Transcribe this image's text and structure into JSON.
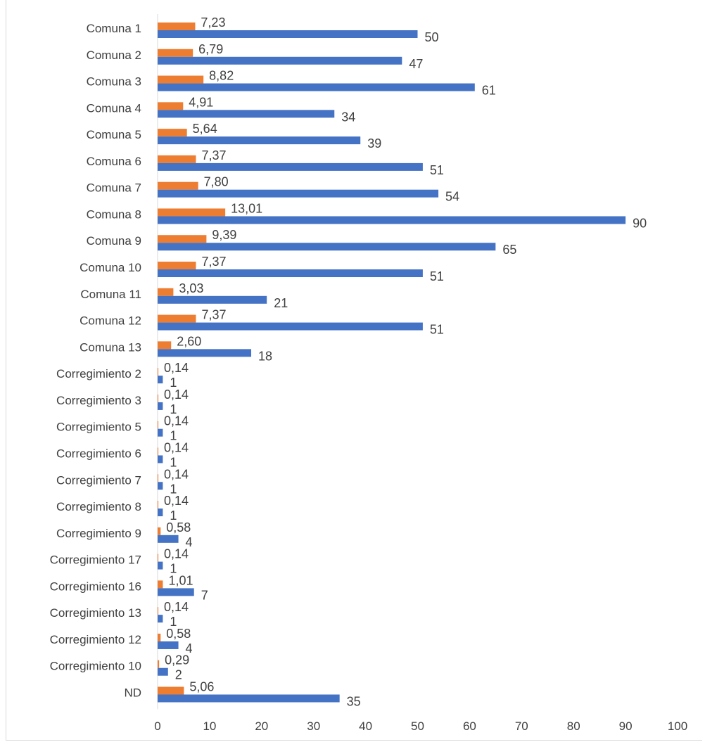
{
  "chart_data": {
    "type": "bar",
    "orientation": "horizontal",
    "categories": [
      "Comuna 1",
      "Comuna 2",
      "Comuna 3",
      "Comuna 4",
      "Comuna 5",
      "Comuna 6",
      "Comuna 7",
      "Comuna 8",
      "Comuna 9",
      "Comuna 10",
      "Comuna 11",
      "Comuna 12",
      "Comuna 13",
      "Corregimiento 2",
      "Corregimiento 3",
      "Corregimiento 5",
      "Corregimiento 6",
      "Corregimiento 7",
      "Corregimiento 8",
      "Corregimiento 9",
      "Corregimiento 17",
      "Corregimiento 16",
      "Corregimiento 13",
      "Corregimiento 12",
      "Corregimiento 10",
      "ND"
    ],
    "series": [
      {
        "color": "#ed7d31",
        "values": [
          7.23,
          6.79,
          8.82,
          4.91,
          5.64,
          7.37,
          7.8,
          13.01,
          9.39,
          7.37,
          3.03,
          7.37,
          2.6,
          0.14,
          0.14,
          0.14,
          0.14,
          0.14,
          0.14,
          0.58,
          0.14,
          1.01,
          0.14,
          0.58,
          0.29,
          5.06
        ],
        "labels": [
          "7,23",
          "6,79",
          "8,82",
          "4,91",
          "5,64",
          "7,37",
          "7,80",
          "13,01",
          "9,39",
          "7,37",
          "3,03",
          "7,37",
          "2,60",
          "0,14",
          "0,14",
          "0,14",
          "0,14",
          "0,14",
          "0,14",
          "0,58",
          "0,14",
          "1,01",
          "0,14",
          "0,58",
          "0,29",
          "5,06"
        ]
      },
      {
        "color": "#4472c4",
        "values": [
          50,
          47,
          61,
          34,
          39,
          51,
          54,
          90,
          65,
          51,
          21,
          51,
          18,
          1,
          1,
          1,
          1,
          1,
          1,
          4,
          1,
          7,
          1,
          4,
          2,
          35
        ],
        "labels": [
          "50",
          "47",
          "61",
          "34",
          "39",
          "51",
          "54",
          "90",
          "65",
          "51",
          "21",
          "51",
          "18",
          "1",
          "1",
          "1",
          "1",
          "1",
          "1",
          "4",
          "1",
          "7",
          "1",
          "4",
          "2",
          "35"
        ]
      }
    ],
    "xlim": [
      0,
      100
    ],
    "x_ticks": [
      "0",
      "10",
      "20",
      "30",
      "40",
      "50",
      "60",
      "70",
      "80",
      "90",
      "100"
    ],
    "grid": false,
    "legend": "none",
    "title": "",
    "xlabel": "",
    "ylabel": ""
  }
}
